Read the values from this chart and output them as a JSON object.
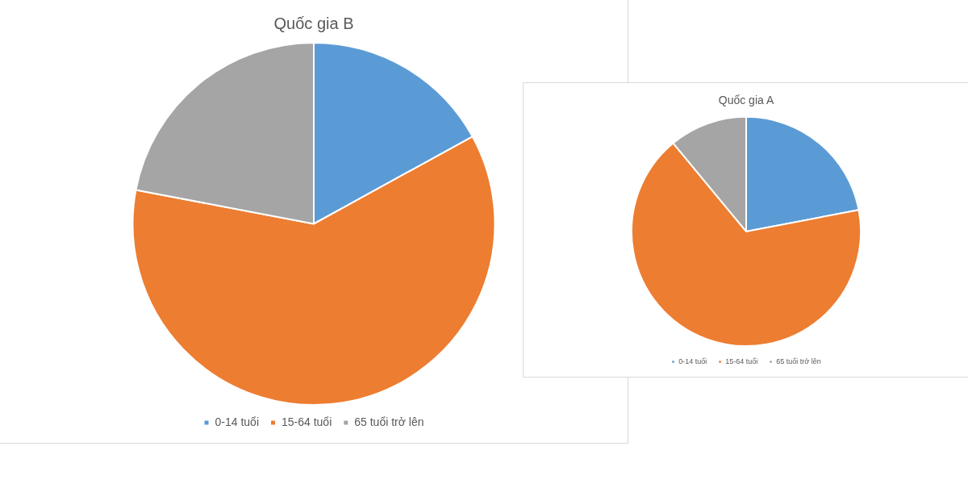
{
  "chart_data": [
    {
      "type": "pie",
      "title": "Quốc gia B",
      "categories": [
        "0-14 tuổi",
        "15-64 tuổi",
        "65 tuổi trở lên"
      ],
      "values": [
        17,
        61,
        22
      ],
      "colors": [
        "#5b9bd5",
        "#ed7d31",
        "#a5a5a5"
      ],
      "legend": "bottom"
    },
    {
      "type": "pie",
      "title": "Quốc gia A",
      "categories": [
        "0-14 tuổi",
        "15-64 tuổi",
        "65 tuổi trở lên"
      ],
      "values": [
        22,
        67,
        11
      ],
      "colors": [
        "#5b9bd5",
        "#ed7d31",
        "#a5a5a5"
      ],
      "legend": "bottom"
    }
  ]
}
